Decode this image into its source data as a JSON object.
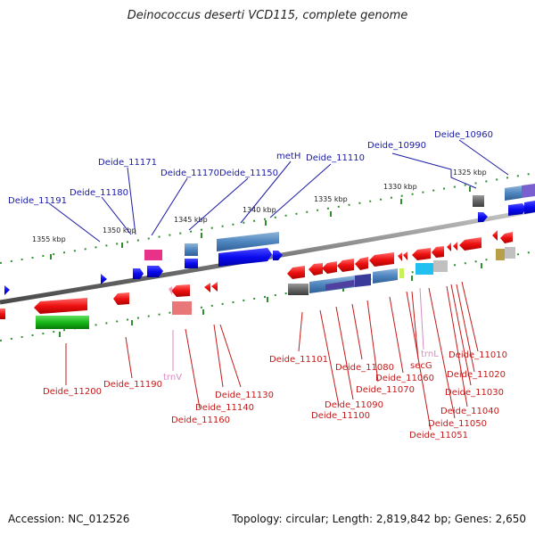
{
  "title": "Deinococcus deserti VCD115, complete genome",
  "footer": {
    "accession": "Accession: NC_012526",
    "summary": "Topology: circular; Length: 2,819,842 bp; Genes: 2,650"
  },
  "colors": {
    "backbone": "#8a8a8a",
    "forward_gene": "#0a0af0",
    "reverse_gene": "#ee1111",
    "top_label": "#1a1aa6",
    "bottom_label": "#c41a1a",
    "rna_label": "#d88ac0",
    "tick": "#2f8f2f"
  },
  "scale_labels": [
    "1355 kbp",
    "1350 kbp",
    "1345 kbp",
    "1340 kbp",
    "1335 kbp",
    "1330 kbp",
    "1325 kbp"
  ],
  "top_labels": [
    "Deide_11191",
    "Deide_11180",
    "Deide_11171",
    "Deide_11170",
    "Deide_11150",
    "metH",
    "Deide_11110",
    "Deide_10990",
    "Deide_10960"
  ],
  "bottom_labels": [
    "Deide_11200",
    "Deide_11190",
    "trnV",
    "Deide_11160",
    "Deide_11140",
    "Deide_11130",
    "Deide_11101",
    "Deide_11100",
    "Deide_11090",
    "Deide_11080",
    "Deide_11070",
    "Deide_11060",
    "secG",
    "trnL",
    "Deide_11051",
    "Deide_11050",
    "Deide_11040",
    "Deide_11030",
    "Deide_11020",
    "Deide_11010"
  ]
}
